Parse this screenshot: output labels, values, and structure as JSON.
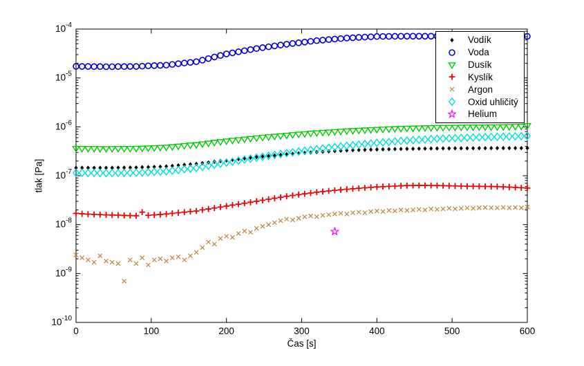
{
  "chart_data": {
    "type": "scatter",
    "title": "",
    "xlabel": "Čas [s]",
    "ylabel": "tlak [Pa]",
    "xlim": [
      0,
      600
    ],
    "x_ticks": [
      0,
      100,
      200,
      300,
      400,
      500,
      600
    ],
    "y_scale": "log",
    "y_ticks_exponents": [
      -4,
      -5,
      -6,
      -7,
      -8,
      -9,
      -10
    ],
    "grid": false,
    "legend_position": "top-right",
    "background": "#ffffff",
    "axis_color": "#000000",
    "t": [
      0,
      8,
      16,
      24,
      32,
      40,
      48,
      56,
      64,
      72,
      80,
      88,
      96,
      104,
      112,
      120,
      128,
      136,
      144,
      152,
      160,
      168,
      176,
      184,
      192,
      200,
      208,
      216,
      224,
      232,
      240,
      248,
      256,
      264,
      272,
      280,
      288,
      296,
      304,
      312,
      320,
      328,
      336,
      344,
      352,
      360,
      368,
      376,
      384,
      392,
      400,
      408,
      416,
      424,
      432,
      440,
      448,
      456,
      464,
      472,
      480,
      488,
      496,
      504,
      512,
      520,
      528,
      536,
      544,
      552,
      560,
      568,
      576,
      584,
      592,
      600
    ],
    "series": [
      {
        "id": "vodik",
        "name": "Vodík",
        "marker": "diamond-filled",
        "color": "#000000",
        "v": [
          1.45e-07,
          1.45e-07,
          1.45e-07,
          1.45e-07,
          1.45e-07,
          1.45e-07,
          1.45e-07,
          1.46e-07,
          1.46e-07,
          1.47e-07,
          1.47e-07,
          1.49e-07,
          1.5e-07,
          1.52e-07,
          1.53e-07,
          1.55e-07,
          1.59e-07,
          1.63e-07,
          1.67e-07,
          1.71e-07,
          1.75e-07,
          1.81e-07,
          1.87e-07,
          1.93e-07,
          1.99e-07,
          2.05e-07,
          2.12e-07,
          2.19e-07,
          2.26e-07,
          2.33e-07,
          2.4e-07,
          2.47e-07,
          2.54e-07,
          2.61e-07,
          2.68e-07,
          2.75e-07,
          2.81e-07,
          2.87e-07,
          2.93e-07,
          2.99e-07,
          3.05e-07,
          3.1e-07,
          3.15e-07,
          3.2e-07,
          3.25e-07,
          3.3e-07,
          3.33e-07,
          3.36e-07,
          3.39e-07,
          3.42e-07,
          3.45e-07,
          3.47e-07,
          3.49e-07,
          3.51e-07,
          3.53e-07,
          3.55e-07,
          3.56e-07,
          3.58e-07,
          3.59e-07,
          3.61e-07,
          3.62e-07,
          3.63e-07,
          3.63e-07,
          3.64e-07,
          3.64e-07,
          3.65e-07,
          3.65e-07,
          3.66e-07,
          3.66e-07,
          3.67e-07,
          3.67e-07,
          3.67e-07,
          3.67e-07,
          3.68e-07,
          3.68e-07,
          3.68e-07
        ]
      },
      {
        "id": "voda",
        "name": "Voda",
        "marker": "circle-open",
        "color": "#0000DD",
        "v": [
          1.73e-05,
          1.72e-05,
          1.72e-05,
          1.71e-05,
          1.71e-05,
          1.7e-05,
          1.7e-05,
          1.71e-05,
          1.71e-05,
          1.72e-05,
          1.72e-05,
          1.74e-05,
          1.77e-05,
          1.79e-05,
          1.81e-05,
          1.83e-05,
          1.89e-05,
          1.96e-05,
          2.02e-05,
          2.08e-05,
          2.15e-05,
          2.31e-05,
          2.49e-05,
          2.68e-05,
          2.88e-05,
          3.1e-05,
          3.26e-05,
          3.43e-05,
          3.61e-05,
          3.8e-05,
          4e-05,
          4.17e-05,
          4.34e-05,
          4.52e-05,
          4.71e-05,
          4.9e-05,
          5.07e-05,
          5.24e-05,
          5.42e-05,
          5.61e-05,
          5.8e-05,
          5.94e-05,
          6.09e-05,
          6.24e-05,
          6.39e-05,
          6.55e-05,
          6.65e-05,
          6.75e-05,
          6.85e-05,
          6.95e-05,
          7.05e-05,
          7.07e-05,
          7.09e-05,
          7.11e-05,
          7.13e-05,
          7.15e-05,
          7.15e-05,
          7.15e-05,
          7.15e-05,
          7.15e-05,
          7.15e-05,
          7.14e-05,
          7.13e-05,
          7.12e-05,
          7.11e-05,
          7.1e-05,
          7.09e-05,
          7.08e-05,
          7.07e-05,
          7.06e-05,
          7.05e-05,
          7.06e-05,
          7.07e-05,
          7.08e-05,
          7.09e-05,
          7.1e-05
        ]
      },
      {
        "id": "dusik",
        "name": "Dusík",
        "marker": "triangle-down-open",
        "color": "#00CC00",
        "v": [
          3.6e-07,
          3.59e-07,
          3.58e-07,
          3.57e-07,
          3.56e-07,
          3.55e-07,
          3.56e-07,
          3.57e-07,
          3.58e-07,
          3.59e-07,
          3.6e-07,
          3.64e-07,
          3.68e-07,
          3.71e-07,
          3.75e-07,
          3.8e-07,
          3.9e-07,
          4e-07,
          4.1e-07,
          4.2e-07,
          4.3e-07,
          4.46e-07,
          4.62e-07,
          4.78e-07,
          4.94e-07,
          5.1e-07,
          5.26e-07,
          5.42e-07,
          5.58e-07,
          5.74e-07,
          5.9e-07,
          6.06e-07,
          6.22e-07,
          6.38e-07,
          6.54e-07,
          6.7e-07,
          6.86e-07,
          7.02e-07,
          7.18e-07,
          7.34e-07,
          7.5e-07,
          7.64e-07,
          7.78e-07,
          7.92e-07,
          8.06e-07,
          8.2e-07,
          8.32e-07,
          8.44e-07,
          8.56e-07,
          8.68e-07,
          8.8e-07,
          8.9e-07,
          9e-07,
          9.1e-07,
          9.2e-07,
          9.3e-07,
          9.36e-07,
          9.42e-07,
          9.48e-07,
          9.54e-07,
          9.6e-07,
          9.64e-07,
          9.68e-07,
          9.72e-07,
          9.76e-07,
          9.8e-07,
          9.82e-07,
          9.84e-07,
          9.86e-07,
          9.88e-07,
          9.9e-07,
          9.95e-07,
          1e-06,
          1.01e-06,
          1.02e-06,
          1.05e-06
        ]
      },
      {
        "id": "kyslik",
        "name": "Kyslík",
        "marker": "plus",
        "color": "#EE0000",
        "v": [
          1.7e-08,
          1.67e-08,
          1.64e-08,
          1.62e-08,
          1.6e-08,
          1.58e-08,
          1.57e-08,
          1.56e-08,
          1.54e-08,
          1.53e-08,
          1.52e-08,
          1.8e-08,
          1.55e-08,
          1.58e-08,
          1.61e-08,
          1.65e-08,
          1.7e-08,
          1.75e-08,
          1.8e-08,
          1.85e-08,
          1.9e-08,
          2e-08,
          2.09e-08,
          2.19e-08,
          2.29e-08,
          2.4e-08,
          2.51e-08,
          2.62e-08,
          2.74e-08,
          2.87e-08,
          3e-08,
          3.15e-08,
          3.3e-08,
          3.46e-08,
          3.62e-08,
          3.8e-08,
          3.95e-08,
          4.11e-08,
          4.27e-08,
          4.43e-08,
          4.6e-08,
          4.74e-08,
          4.88e-08,
          5.02e-08,
          5.16e-08,
          5.3e-08,
          5.42e-08,
          5.54e-08,
          5.66e-08,
          5.78e-08,
          5.9e-08,
          5.98e-08,
          6.06e-08,
          6.14e-08,
          6.22e-08,
          6.3e-08,
          6.31e-08,
          6.32e-08,
          6.32e-08,
          6.31e-08,
          6.3e-08,
          6.26e-08,
          6.22e-08,
          6.18e-08,
          6.14e-08,
          6.1e-08,
          6.08e-08,
          6.06e-08,
          6.04e-08,
          6.02e-08,
          6e-08,
          5.93e-08,
          5.85e-08,
          5.77e-08,
          5.68e-08,
          5.6e-08
        ]
      },
      {
        "id": "argon",
        "name": "Argon",
        "marker": "x",
        "color": "#C08440",
        "v": [
          2.4e-09,
          2.1e-09,
          1.9e-09,
          1.7e-09,
          2.3e-09,
          1.8e-09,
          1.7e-09,
          1.6e-09,
          7e-10,
          1.9e-09,
          1.6e-09,
          2.1e-09,
          1.5e-09,
          1.9e-09,
          2e-09,
          1.8e-09,
          2.1e-09,
          2.2e-09,
          1.9e-09,
          2.3e-09,
          2.7e-09,
          3.4e-09,
          4.4e-09,
          4e-09,
          5.2e-09,
          5.8e-09,
          5.5e-09,
          6.6e-09,
          7.4e-09,
          7e-09,
          8.4e-09,
          9.2e-09,
          1e-08,
          1.1e-08,
          1.2e-08,
          1.3e-08,
          1.25e-08,
          1.35e-08,
          1.45e-08,
          1.5e-08,
          1.45e-08,
          1.55e-08,
          1.6e-08,
          1.65e-08,
          1.7e-08,
          1.65e-08,
          1.75e-08,
          1.8e-08,
          1.75e-08,
          1.85e-08,
          1.9e-08,
          1.85e-08,
          1.95e-08,
          1.9e-08,
          2e-08,
          1.95e-08,
          2e-08,
          2.05e-08,
          2e-08,
          2.1e-08,
          2.05e-08,
          2.1e-08,
          2.15e-08,
          2.1e-08,
          2.15e-08,
          2.2e-08,
          2.15e-08,
          2.2e-08,
          2.25e-08,
          2.2e-08,
          2.2e-08,
          2.25e-08,
          2.2e-08,
          2.25e-08,
          2.2e-08,
          2.3e-08
        ]
      },
      {
        "id": "oxid-uhlicity",
        "name": "Oxid uhličitý",
        "marker": "diamond-open",
        "color": "#00DDDD",
        "v": [
          1.15e-07,
          1.15e-07,
          1.14e-07,
          1.14e-07,
          1.13e-07,
          1.13e-07,
          1.13e-07,
          1.14e-07,
          1.14e-07,
          1.15e-07,
          1.15e-07,
          1.16e-07,
          1.18e-07,
          1.2e-07,
          1.21e-07,
          1.23e-07,
          1.27e-07,
          1.31e-07,
          1.36e-07,
          1.4e-07,
          1.45e-07,
          1.52e-07,
          1.6e-07,
          1.68e-07,
          1.76e-07,
          1.85e-07,
          1.94e-07,
          2.04e-07,
          2.14e-07,
          2.24e-07,
          2.35e-07,
          2.45e-07,
          2.56e-07,
          2.67e-07,
          2.78e-07,
          2.9e-07,
          3.01e-07,
          3.13e-07,
          3.25e-07,
          3.37e-07,
          3.5e-07,
          3.62e-07,
          3.74e-07,
          3.86e-07,
          3.98e-07,
          4.1e-07,
          4.22e-07,
          4.34e-07,
          4.46e-07,
          4.58e-07,
          4.7e-07,
          4.81e-07,
          4.92e-07,
          5.03e-07,
          5.14e-07,
          5.25e-07,
          5.34e-07,
          5.43e-07,
          5.52e-07,
          5.61e-07,
          5.7e-07,
          5.76e-07,
          5.82e-07,
          5.88e-07,
          5.94e-07,
          6e-07,
          6.05e-07,
          6.1e-07,
          6.15e-07,
          6.2e-07,
          6.25e-07,
          6.3e-07,
          6.35e-07,
          6.4e-07,
          6.45e-07,
          6.5e-07
        ]
      },
      {
        "id": "helium",
        "name": "Helium",
        "marker": "pentagram",
        "color": "#FF00FF",
        "t": [
          344
        ],
        "v": [
          7.2e-09
        ]
      }
    ]
  }
}
